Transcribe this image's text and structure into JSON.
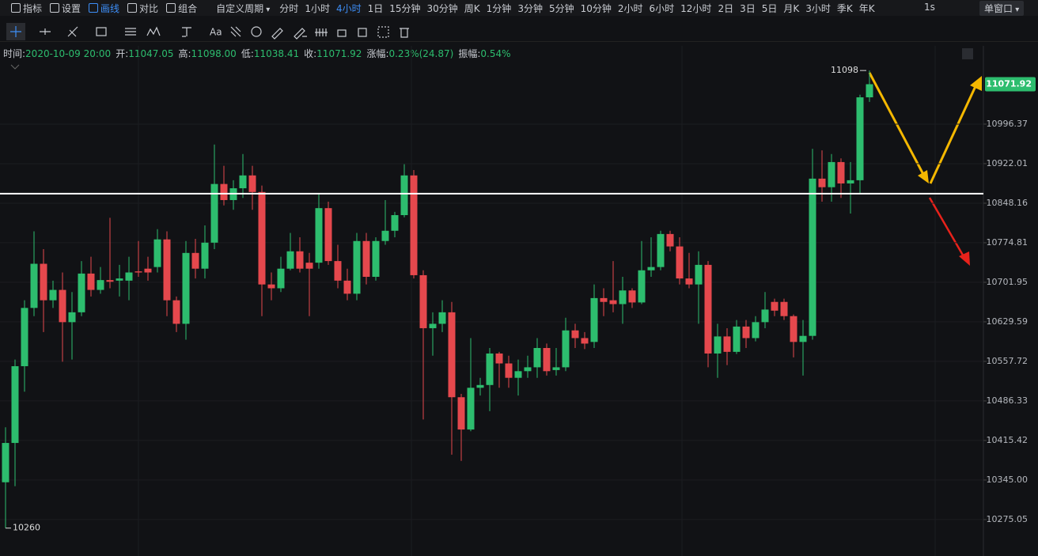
{
  "toolbar": {
    "menu": [
      "指标",
      "设置",
      "画线",
      "对比",
      "组合"
    ],
    "active_menu": "画线",
    "custom_period": "自定义周期",
    "periods": [
      "分时",
      "1小时",
      "4小时",
      "1日",
      "15分钟",
      "30分钟",
      "周K",
      "1分钟",
      "3分钟",
      "5分钟",
      "10分钟",
      "2小时",
      "6小时",
      "12小时",
      "2日",
      "3日",
      "5日",
      "月K",
      "3小时",
      "季K",
      "年K"
    ],
    "active_period": "4小时",
    "refresh": "1s",
    "window": "单窗口"
  },
  "drawing_tools": {
    "text_tool": "Aa"
  },
  "info": [
    {
      "label": "时间:",
      "value": "2020-10-09 20:00"
    },
    {
      "label": "开:",
      "value": "11047.05"
    },
    {
      "label": "高:",
      "value": "11098.00"
    },
    {
      "label": "低:",
      "value": "11038.41"
    },
    {
      "label": "收:",
      "value": "11071.92"
    },
    {
      "label": "涨幅:",
      "value": "0.23%(24.87)"
    },
    {
      "label": "振幅:",
      "value": "0.54%"
    }
  ],
  "chart_data": {
    "type": "candlestick",
    "up_color": "#2dbd6e",
    "down_color": "#e5484d",
    "open": [
      10341,
      10411,
      10549,
      10655,
      10736,
      10669,
      10688,
      10629,
      10647,
      10718,
      10688,
      10706,
      10705,
      10705,
      10722,
      10727,
      10730,
      10781,
      10669,
      10626,
      10756,
      10727,
      10775,
      10884,
      10854,
      10876,
      10900,
      10869,
      10698,
      10691,
      10727,
      10759,
      10738,
      10738,
      10839,
      10741,
      10705,
      10681,
      10778,
      10712,
      10778,
      10797,
      10826,
      10900,
      10715,
      10618,
      10626,
      10647,
      10493,
      10435,
      10510,
      10515,
      10572,
      10554,
      10528,
      10540,
      10547,
      10582,
      10542,
      10547,
      10614,
      10600,
      10593,
      10673,
      10669,
      10662,
      10687,
      10665,
      10724,
      10730,
      10791,
      10768,
      10709,
      10698,
      10734,
      10572,
      10603,
      10575,
      10621,
      10600,
      10629,
      10666,
      10666,
      10640,
      10593,
      10604,
      10894,
      10878,
      10925,
      10885,
      10891,
      11047.05
    ],
    "high": [
      10439,
      10561,
      10669,
      10796,
      10763,
      10705,
      10720,
      10684,
      10741,
      10749,
      10730,
      10821,
      10734,
      10749,
      10778,
      10749,
      10800,
      10796,
      10676,
      10778,
      10782,
      10807,
      10958,
      10918,
      10891,
      10940,
      10918,
      10881,
      10720,
      10749,
      10793,
      10785,
      10756,
      10866,
      10851,
      10771,
      10727,
      10793,
      10793,
      10785,
      10854,
      10832,
      10921,
      10910,
      10724,
      10647,
      10669,
      10666,
      10499,
      10600,
      10528,
      10582,
      10575,
      10568,
      10561,
      10568,
      10600,
      10590,
      10582,
      10637,
      10626,
      10611,
      10698,
      10691,
      10741,
      10712,
      10691,
      10778,
      10785,
      10797,
      10797,
      10785,
      10756,
      10759,
      10741,
      10626,
      10618,
      10633,
      10633,
      10640,
      10684,
      10672,
      10672,
      10643,
      10633,
      10950,
      10947,
      10940,
      10932,
      10925,
      11052,
      11098
    ],
    "low": [
      10260,
      10334,
      10503,
      10640,
      10611,
      10655,
      10557,
      10561,
      10640,
      10676,
      10681,
      10691,
      10676,
      10669,
      10712,
      10705,
      10720,
      10640,
      10611,
      10597,
      10709,
      10709,
      10763,
      10844,
      10836,
      10858,
      10836,
      10640,
      10669,
      10684,
      10724,
      10720,
      10640,
      10727,
      10734,
      10691,
      10669,
      10669,
      10698,
      10705,
      10771,
      10785,
      10822,
      10709,
      10453,
      10568,
      10611,
      10390,
      10379,
      10432,
      10496,
      10468,
      10510,
      10510,
      10496,
      10528,
      10528,
      10532,
      10532,
      10540,
      10582,
      10580,
      10582,
      10640,
      10647,
      10626,
      10655,
      10662,
      10712,
      10724,
      10759,
      10698,
      10691,
      10626,
      10547,
      10528,
      10551,
      10571,
      10582,
      10594,
      10618,
      10640,
      10633,
      10565,
      10532,
      10597,
      10851,
      10851,
      10858,
      10829,
      10866,
      11038.41
    ],
    "close": [
      10411,
      10549,
      10655,
      10736,
      10669,
      10688,
      10629,
      10647,
      10718,
      10688,
      10706,
      10703,
      10709,
      10720,
      10720,
      10720,
      10781,
      10669,
      10626,
      10756,
      10727,
      10775,
      10884,
      10854,
      10876,
      10900,
      10869,
      10698,
      10691,
      10727,
      10759,
      10727,
      10727,
      10839,
      10741,
      10705,
      10681,
      10778,
      10712,
      10778,
      10797,
      10826,
      10900,
      10715,
      10618,
      10626,
      10647,
      10493,
      10435,
      10510,
      10515,
      10572,
      10554,
      10528,
      10540,
      10547,
      10582,
      10540,
      10547,
      10614,
      10600,
      10590,
      10673,
      10666,
      10662,
      10687,
      10665,
      10724,
      10730,
      10791,
      10768,
      10709,
      10698,
      10734,
      10572,
      10603,
      10575,
      10621,
      10600,
      10629,
      10652,
      10650,
      10640,
      10593,
      10604,
      10894,
      10878,
      10925,
      10885,
      10891,
      11047.05,
      11071.92
    ],
    "ylim": [
      10211,
      11145
    ],
    "log_scale": true,
    "yticks": [
      10275.05,
      {
        "value": 10345,
        "label": "10345.00"
      },
      10415.42,
      10486.33,
      10557.72,
      10629.59,
      10701.95,
      10774.81,
      10848.16,
      10922.01,
      10996.37
    ],
    "hline": 10866,
    "hline_color": "#ffffff",
    "grid": true
  }
}
